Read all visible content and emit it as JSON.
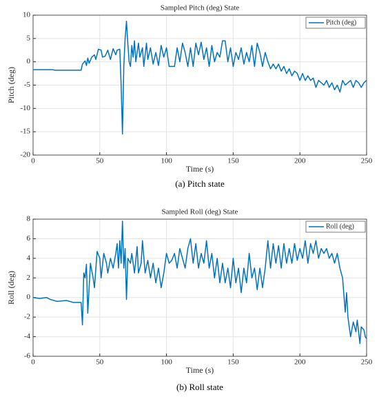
{
  "chart_data": [
    {
      "type": "line",
      "title": "Sampled Pitch (deg) State",
      "xlabel": "Time (s)",
      "ylabel": "Pitch (deg)",
      "caption": "(a) Pitch state",
      "x": [
        0,
        15,
        16,
        36,
        37,
        39,
        40,
        41,
        42,
        44,
        46,
        47,
        49,
        51,
        52,
        54,
        56,
        58,
        60,
        62,
        63,
        65,
        66,
        67,
        68,
        69,
        70,
        71,
        72,
        73,
        74,
        75,
        76,
        77,
        79,
        80,
        82,
        83,
        85,
        86,
        88,
        90,
        92,
        94,
        96,
        98,
        100,
        102,
        106,
        108,
        110,
        112,
        114,
        116,
        118,
        120,
        122,
        124,
        126,
        128,
        130,
        132,
        134,
        136,
        138,
        140,
        142,
        144,
        146,
        148,
        150,
        152,
        154,
        156,
        158,
        160,
        162,
        164,
        166,
        168,
        170,
        172,
        174,
        176,
        178,
        180,
        182,
        184,
        186,
        188,
        190,
        192,
        194,
        196,
        198,
        200,
        202,
        204,
        206,
        208,
        210,
        212,
        214,
        216,
        218,
        220,
        222,
        224,
        226,
        228,
        230,
        232,
        234,
        236,
        238,
        240,
        242,
        244,
        246,
        248,
        250
      ],
      "series": [
        {
          "name": "Pitch (deg)",
          "color": "#0072bd",
          "values": [
            -1.7,
            -1.7,
            -1.8,
            -1.8,
            -0.5,
            0.2,
            -0.8,
            0.8,
            -0.3,
            1,
            1.5,
            0.5,
            2.7,
            2.5,
            1,
            1.2,
            2.5,
            0.5,
            2.8,
            1.5,
            2.5,
            2.7,
            -5,
            -15.5,
            -1,
            5,
            8.7,
            4,
            0,
            -1,
            3.5,
            1,
            4.5,
            0,
            4,
            1,
            3,
            -1,
            4,
            0.5,
            3,
            -0.5,
            2,
            -0.8,
            3.5,
            1,
            3,
            -1,
            -1,
            3,
            0,
            4,
            2,
            -1,
            3,
            -1,
            4,
            1.5,
            4.2,
            0.5,
            3,
            -1,
            3.5,
            0,
            2,
            1,
            4.5,
            4.5,
            0,
            3,
            -1,
            2,
            0.5,
            3,
            -0.5,
            2,
            0,
            3.5,
            -1,
            4,
            2,
            -1,
            2,
            0,
            -1.5,
            -0.5,
            -1.5,
            -0.5,
            -2,
            -1,
            -2.5,
            -1.5,
            -3,
            -2,
            -2.5,
            -4,
            -2.5,
            -4,
            -3,
            -4,
            -3.5,
            -5.5,
            -4,
            -4.5,
            -5,
            -4,
            -5.5,
            -4.5,
            -6,
            -5,
            -6.5,
            -4,
            -5,
            -4.5,
            -4,
            -5.5,
            -4,
            -4.5,
            -5.5,
            -4.5,
            -4
          ]
        }
      ],
      "xlim": [
        0,
        250
      ],
      "xticks": [
        0,
        50,
        100,
        150,
        200,
        250
      ],
      "ylim": [
        -20,
        10
      ],
      "yticks": [
        -20,
        -15,
        -10,
        -5,
        0,
        5,
        10
      ],
      "grid": true,
      "legend": "upper right"
    },
    {
      "type": "line",
      "title": "Sampled Roll (deg) State",
      "xlabel": "Time (s)",
      "ylabel": "Roll (deg)",
      "caption": "(b) Roll state",
      "x": [
        0,
        5,
        10,
        13,
        18,
        25,
        30,
        36,
        37,
        38,
        39,
        40,
        41,
        42,
        43,
        45,
        46,
        48,
        50,
        51,
        53,
        55,
        56,
        58,
        60,
        62,
        63,
        64,
        65,
        66,
        67,
        68,
        69,
        70,
        71,
        73,
        74,
        76,
        78,
        79,
        81,
        82,
        84,
        86,
        88,
        90,
        92,
        94,
        96,
        98,
        100,
        102,
        104,
        106,
        108,
        110,
        112,
        114,
        116,
        118,
        120,
        122,
        124,
        126,
        128,
        130,
        132,
        134,
        136,
        138,
        140,
        142,
        144,
        146,
        148,
        150,
        152,
        154,
        156,
        158,
        160,
        162,
        164,
        166,
        168,
        170,
        172,
        174,
        176,
        178,
        180,
        182,
        184,
        186,
        188,
        190,
        192,
        194,
        196,
        198,
        200,
        202,
        204,
        206,
        208,
        210,
        212,
        214,
        216,
        218,
        220,
        222,
        224,
        226,
        228,
        230,
        232,
        234,
        235,
        236,
        238,
        240,
        242,
        243,
        245,
        246,
        248,
        249,
        250
      ],
      "series": [
        {
          "name": "Roll (deg)",
          "color": "#0072bd",
          "values": [
            0,
            -0.1,
            0,
            -0.2,
            -0.4,
            -0.3,
            -0.5,
            -0.5,
            -2.8,
            2.5,
            2,
            3.4,
            -1.6,
            1,
            3.5,
            2,
            1,
            4.7,
            4,
            2,
            4.5,
            3.5,
            2.5,
            4,
            3,
            4.5,
            5.5,
            3,
            5.8,
            3.5,
            7.8,
            3,
            5,
            -0.2,
            4,
            3.5,
            4.5,
            2.5,
            5.2,
            2.5,
            3.5,
            5.8,
            2.5,
            3.8,
            2,
            3.5,
            1.5,
            3,
            1,
            2.5,
            4.5,
            3.5,
            3.8,
            4.5,
            3,
            5,
            4,
            3,
            5,
            6,
            3.5,
            5.5,
            3,
            4.5,
            3.5,
            5.8,
            3,
            4.5,
            2,
            4,
            1.5,
            3.5,
            1.5,
            3,
            1,
            4,
            1.5,
            3,
            0.5,
            3,
            1.5,
            4.5,
            2,
            3,
            0.8,
            3,
            1,
            3,
            5.8,
            3,
            5.5,
            3.5,
            5.3,
            3,
            5.5,
            3.5,
            5,
            3.5,
            5.5,
            3.8,
            5,
            4,
            5.8,
            3.5,
            5.5,
            4.5,
            5.8,
            4,
            5,
            4.5,
            5,
            4,
            4.5,
            3.5,
            4.5,
            3,
            2,
            -1.5,
            0.5,
            -2,
            -4,
            -2.5,
            -3.5,
            -2.3,
            -4.7,
            -3,
            -3.3,
            -4,
            -4.2
          ]
        }
      ],
      "xlim": [
        0,
        250
      ],
      "xticks": [
        0,
        50,
        100,
        150,
        200,
        250
      ],
      "ylim": [
        -6,
        8
      ],
      "yticks": [
        -6,
        -4,
        -2,
        0,
        2,
        4,
        6,
        8
      ],
      "grid": true,
      "legend": "upper right"
    }
  ]
}
